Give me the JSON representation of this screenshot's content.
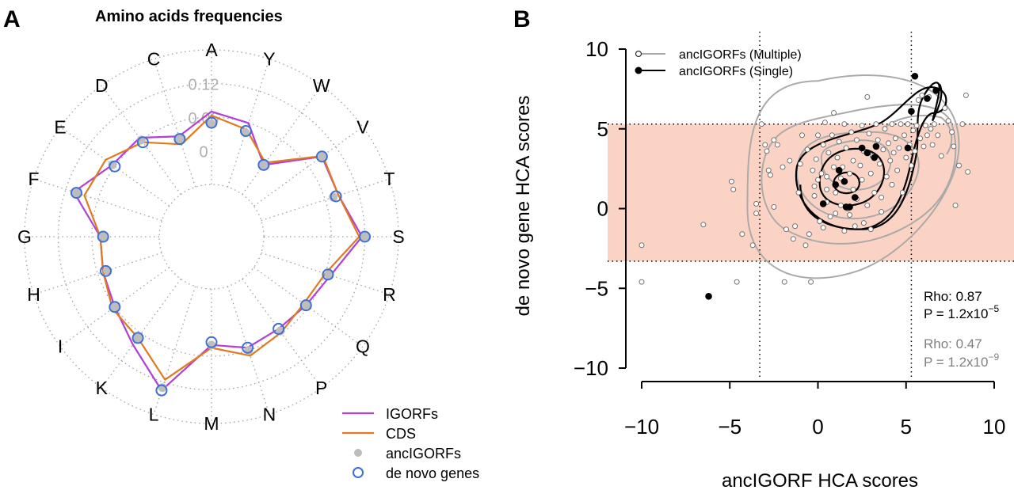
{
  "panels": {
    "a": {
      "letter": "A"
    },
    "b": {
      "letter": "B"
    }
  },
  "chart_data": [
    {
      "type": "radar",
      "title": "Amino acids frequencies",
      "categories": [
        "A",
        "Y",
        "W",
        "V",
        "T",
        "S",
        "R",
        "Q",
        "P",
        "N",
        "M",
        "L",
        "K",
        "I",
        "H",
        "G",
        "F",
        "E",
        "D",
        "C"
      ],
      "radial_ticks": [
        {
          "value": 0,
          "label": "0"
        },
        {
          "value": 0.06,
          "label": "0.06"
        },
        {
          "value": 0.12,
          "label": "0.12"
        }
      ],
      "rlim": [
        -0.06,
        0.18
      ],
      "grid": "dotted",
      "legend_position": "bottom-right",
      "series": [
        {
          "name": "IGORFs",
          "style": "line",
          "color": "#b140d8",
          "values": [
            0.07,
            0.06,
            0.005,
            0.09,
            0.085,
            0.115,
            0.07,
            0.055,
            0.05,
            0.055,
            0.04,
            0.135,
            0.085,
            0.06,
            0.05,
            0.045,
            0.105,
            0.065,
            0.065,
            0.035
          ]
        },
        {
          "name": "CDS",
          "style": "line",
          "color": "#e07a1f",
          "values": [
            0.063,
            0.048,
            0.01,
            0.092,
            0.085,
            0.11,
            0.06,
            0.05,
            0.058,
            0.07,
            0.045,
            0.115,
            0.07,
            0.065,
            0.05,
            0.045,
            0.085,
            0.08,
            0.055,
            0.02
          ]
        },
        {
          "name": "ancIGORFs",
          "style": "dot",
          "color": "#bdbdbd",
          "values": [
            0.048,
            0.042,
            0.005,
            0.09,
            0.075,
            0.12,
            0.067,
            0.055,
            0.055,
            0.06,
            0.04,
            0.13,
            0.07,
            0.06,
            0.042,
            0.04,
            0.1,
            0.065,
            0.06,
            0.03
          ]
        },
        {
          "name": "de novo genes",
          "style": "circle",
          "color": "#3d6fd6",
          "values": [
            0.05,
            0.045,
            0.005,
            0.09,
            0.08,
            0.12,
            0.065,
            0.055,
            0.05,
            0.055,
            0.035,
            0.135,
            0.07,
            0.06,
            0.045,
            0.04,
            0.1,
            0.06,
            0.055,
            0.03
          ]
        }
      ]
    },
    {
      "type": "scatter",
      "xlabel": "ancIGORF HCA scores",
      "ylabel": "de novo gene HCA scores",
      "xlim": [
        -10,
        10
      ],
      "ylim": [
        -10,
        10
      ],
      "xticks": [
        -10,
        -5,
        0,
        5,
        10
      ],
      "yticks": [
        -10,
        -5,
        0,
        5,
        10
      ],
      "shaded_band_y": [
        -3.3,
        5.3
      ],
      "shaded_band_color": "#fbd3c4",
      "vlines": [
        -3.3,
        5.3
      ],
      "hlines": [
        -3.3,
        5.3
      ],
      "legend_position": "top-left",
      "series": [
        {
          "name": "ancIGORFs (Multiple)",
          "marker": "open-circle",
          "color": "#a8a8a8",
          "points": [
            [
              -10,
              -2.3
            ],
            [
              -10,
              -4.6
            ],
            [
              -6.5,
              -1.0
            ],
            [
              -4.9,
              1.7
            ],
            [
              -4.8,
              1.2
            ],
            [
              -4.6,
              -4.6
            ],
            [
              -4.3,
              -1.6
            ],
            [
              -3.7,
              -2.3
            ],
            [
              -3.5,
              0.3
            ],
            [
              -3.5,
              -0.3
            ],
            [
              -3.2,
              5.3
            ],
            [
              -3.0,
              4.0
            ],
            [
              -2.9,
              3.6
            ],
            [
              -2.8,
              2.4
            ],
            [
              -2.7,
              2.1
            ],
            [
              -2.5,
              0.1
            ],
            [
              -2.5,
              4.3
            ],
            [
              -2.3,
              4.0
            ],
            [
              -2.0,
              2.6
            ],
            [
              -1.9,
              -4.6
            ],
            [
              -1.8,
              -1.3
            ],
            [
              -1.6,
              3.0
            ],
            [
              -1.4,
              -1.9
            ],
            [
              -1.3,
              -1.1
            ],
            [
              -1.1,
              1.0
            ],
            [
              -1.0,
              2.8
            ],
            [
              -0.9,
              4.6
            ],
            [
              -0.7,
              -2.3
            ],
            [
              -0.6,
              3.7
            ],
            [
              -0.5,
              -1.6
            ],
            [
              -0.4,
              -4.6
            ],
            [
              -0.3,
              2.4
            ],
            [
              -0.2,
              1.4
            ],
            [
              -0.2,
              0.8
            ],
            [
              -0.1,
              3.1
            ],
            [
              0.0,
              1.8
            ],
            [
              0.0,
              4.6
            ],
            [
              0.1,
              -0.8
            ],
            [
              0.2,
              2.2
            ],
            [
              0.3,
              4.0
            ],
            [
              0.3,
              -1.2
            ],
            [
              0.4,
              5.4
            ],
            [
              0.5,
              0.4
            ],
            [
              0.5,
              1.2
            ],
            [
              0.5,
              2.0
            ],
            [
              0.6,
              3.5
            ],
            [
              0.7,
              -0.5
            ],
            [
              0.8,
              4.6
            ],
            [
              0.9,
              6.0
            ],
            [
              0.9,
              2.6
            ],
            [
              1.0,
              1.0
            ],
            [
              1.0,
              -0.3
            ],
            [
              1.1,
              3.2
            ],
            [
              1.2,
              4.2
            ],
            [
              1.3,
              0.2
            ],
            [
              1.3,
              1.9
            ],
            [
              1.4,
              2.6
            ],
            [
              1.5,
              -1.4
            ],
            [
              1.5,
              5.3
            ],
            [
              1.6,
              3.8
            ],
            [
              1.7,
              0.0
            ],
            [
              1.8,
              2.2
            ],
            [
              1.8,
              -0.4
            ],
            [
              1.9,
              4.8
            ],
            [
              2.0,
              1.2
            ],
            [
              2.0,
              3.0
            ],
            [
              2.1,
              -1.1
            ],
            [
              2.2,
              0.6
            ],
            [
              2.2,
              4.3
            ],
            [
              2.4,
              2.7
            ],
            [
              2.5,
              5.2
            ],
            [
              2.5,
              1.8
            ],
            [
              2.6,
              -0.9
            ],
            [
              2.6,
              3.6
            ],
            [
              2.8,
              0.2
            ],
            [
              2.8,
              7.0
            ],
            [
              2.9,
              4.7
            ],
            [
              3.0,
              2.2
            ],
            [
              3.0,
              -1.3
            ],
            [
              3.1,
              3.3
            ],
            [
              3.2,
              1.0
            ],
            [
              3.3,
              5.3
            ],
            [
              3.4,
              4.3
            ],
            [
              3.5,
              2.8
            ],
            [
              3.6,
              0.7
            ],
            [
              3.6,
              -0.2
            ],
            [
              3.7,
              3.7
            ],
            [
              3.8,
              5.0
            ],
            [
              3.9,
              2.0
            ],
            [
              4.0,
              4.1
            ],
            [
              4.1,
              3.0
            ],
            [
              4.2,
              1.5
            ],
            [
              4.2,
              5.3
            ],
            [
              4.3,
              3.5
            ],
            [
              4.4,
              4.4
            ],
            [
              4.5,
              2.4
            ],
            [
              4.6,
              3.8
            ],
            [
              4.7,
              5.3
            ],
            [
              4.8,
              1.0
            ],
            [
              4.9,
              4.6
            ],
            [
              5.0,
              3.2
            ],
            [
              5.1,
              5.3
            ],
            [
              5.2,
              4.0
            ],
            [
              5.3,
              2.7
            ],
            [
              5.4,
              4.9
            ],
            [
              5.5,
              3.6
            ],
            [
              5.6,
              5.2
            ],
            [
              5.7,
              6.8
            ],
            [
              5.8,
              4.4
            ],
            [
              5.9,
              7.1
            ],
            [
              6.0,
              3.9
            ],
            [
              6.1,
              5.2
            ],
            [
              6.2,
              4.6
            ],
            [
              6.3,
              7.0
            ],
            [
              6.4,
              5.0
            ],
            [
              6.5,
              4.0
            ],
            [
              6.6,
              5.3
            ],
            [
              6.8,
              4.6
            ],
            [
              7.0,
              3.3
            ],
            [
              7.2,
              6.3
            ],
            [
              7.4,
              5.5
            ],
            [
              7.6,
              4.8
            ],
            [
              7.7,
              3.9
            ],
            [
              7.8,
              0.2
            ],
            [
              8.0,
              2.7
            ],
            [
              8.2,
              5.3
            ],
            [
              8.4,
              7.1
            ],
            [
              8.5,
              2.3
            ]
          ]
        },
        {
          "name": "ancIGORFs (Single)",
          "marker": "filled-circle",
          "color": "#000000",
          "points": [
            [
              -6.2,
              -5.5
            ],
            [
              0.3,
              0.3
            ],
            [
              1.0,
              1.5
            ],
            [
              1.2,
              2.4
            ],
            [
              1.5,
              1.7
            ],
            [
              1.6,
              0.1
            ],
            [
              1.8,
              0.1
            ],
            [
              2.1,
              0.7
            ],
            [
              2.5,
              3.8
            ],
            [
              2.8,
              3.5
            ],
            [
              3.2,
              3.2
            ],
            [
              3.3,
              3.9
            ],
            [
              5.1,
              3.8
            ],
            [
              5.3,
              6.1
            ],
            [
              5.5,
              8.3
            ],
            [
              6.2,
              6.9
            ],
            [
              6.7,
              7.4
            ]
          ]
        }
      ],
      "annotations": [
        {
          "text": "Rho: 0.87",
          "color": "#000000"
        },
        {
          "text": "P = 1.2x10",
          "exponent": "−5",
          "color": "#000000"
        },
        {
          "text": "Rho: 0.47",
          "color": "#808080"
        },
        {
          "text": "P = 1.2x10",
          "exponent": "−9",
          "color": "#808080"
        }
      ]
    }
  ]
}
